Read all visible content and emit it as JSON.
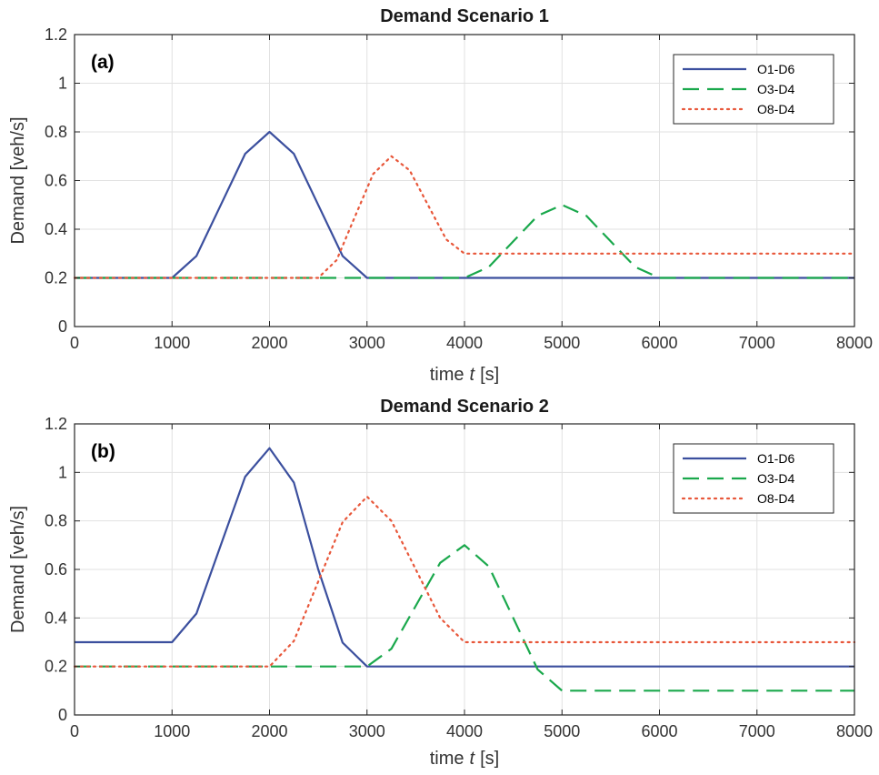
{
  "chart_data": [
    {
      "type": "line",
      "title": "Demand Scenario 1",
      "panel_label": "(a)",
      "xlabel_prefix": "time",
      "xlabel_var": "t",
      "xlabel_unit": "[s]",
      "ylabel": "Demand [veh/s]",
      "xlim": [
        0,
        8000
      ],
      "ylim": [
        0,
        1.2
      ],
      "xticks": [
        0,
        1000,
        2000,
        3000,
        4000,
        5000,
        6000,
        7000,
        8000
      ],
      "yticks": [
        0,
        0.2,
        0.4,
        0.6,
        0.8,
        1,
        1.2
      ],
      "xtick_labels": [
        "0",
        "1000",
        "2000",
        "3000",
        "4000",
        "5000",
        "6000",
        "7000",
        "8000"
      ],
      "ytick_labels": [
        "0",
        "0.2",
        "0.4",
        "0.6",
        "0.8",
        "1",
        "1.2"
      ],
      "grid": true,
      "legend_position": "top-right",
      "series": [
        {
          "name": "O1-D6",
          "color": "#3b4f9e",
          "style": "solid",
          "x": [
            0,
            1000,
            1250,
            1500,
            1750,
            2000,
            2250,
            2500,
            2750,
            3000,
            8000
          ],
          "y": [
            0.2,
            0.2,
            0.29,
            0.5,
            0.71,
            0.8,
            0.71,
            0.5,
            0.29,
            0.2,
            0.2
          ]
        },
        {
          "name": "O3-D4",
          "color": "#1aa84c",
          "style": "dashed",
          "x": [
            0,
            4000,
            4250,
            4500,
            4750,
            5000,
            5250,
            5500,
            5750,
            6000,
            8000
          ],
          "y": [
            0.2,
            0.2,
            0.245,
            0.35,
            0.455,
            0.5,
            0.455,
            0.35,
            0.245,
            0.2,
            0.2
          ]
        },
        {
          "name": "O8-D4",
          "color": "#e8573a",
          "style": "dotted",
          "x": [
            0,
            2500,
            2688,
            2875,
            3063,
            3250,
            3438,
            3625,
            3813,
            4000,
            8000
          ],
          "y": [
            0.2,
            0.2,
            0.273,
            0.45,
            0.627,
            0.7,
            0.642,
            0.5,
            0.358,
            0.3,
            0.3
          ]
        }
      ]
    },
    {
      "type": "line",
      "title": "Demand Scenario 2",
      "panel_label": "(b)",
      "xlabel_prefix": "time",
      "xlabel_var": "t",
      "xlabel_unit": "[s]",
      "ylabel": "Demand [veh/s]",
      "xlim": [
        0,
        8000
      ],
      "ylim": [
        0,
        1.2
      ],
      "xticks": [
        0,
        1000,
        2000,
        3000,
        4000,
        5000,
        6000,
        7000,
        8000
      ],
      "yticks": [
        0,
        0.2,
        0.4,
        0.6,
        0.8,
        1,
        1.2
      ],
      "xtick_labels": [
        "0",
        "1000",
        "2000",
        "3000",
        "4000",
        "5000",
        "6000",
        "7000",
        "8000"
      ],
      "ytick_labels": [
        "0",
        "0.2",
        "0.4",
        "0.6",
        "0.8",
        "1",
        "1.2"
      ],
      "grid": true,
      "legend_position": "top-right",
      "series": [
        {
          "name": "O1-D6",
          "color": "#3b4f9e",
          "style": "solid",
          "x": [
            0,
            1000,
            1250,
            1500,
            1750,
            2000,
            2250,
            2500,
            2750,
            3000,
            8000
          ],
          "y": [
            0.3,
            0.3,
            0.418,
            0.7,
            0.982,
            1.1,
            0.958,
            0.6,
            0.298,
            0.2,
            0.2
          ]
        },
        {
          "name": "O3-D4",
          "color": "#1aa84c",
          "style": "dashed",
          "x": [
            0,
            3000,
            3250,
            3500,
            3750,
            4000,
            4250,
            4500,
            4750,
            5000,
            8000
          ],
          "y": [
            0.2,
            0.2,
            0.273,
            0.45,
            0.627,
            0.7,
            0.612,
            0.4,
            0.188,
            0.1,
            0.1
          ]
        },
        {
          "name": "O8-D4",
          "color": "#e8573a",
          "style": "dotted",
          "x": [
            0,
            2000,
            2250,
            2500,
            2750,
            3000,
            3250,
            3500,
            3750,
            4000,
            8000
          ],
          "y": [
            0.2,
            0.2,
            0.305,
            0.55,
            0.795,
            0.9,
            0.8,
            0.6,
            0.4,
            0.3,
            0.3
          ]
        }
      ]
    }
  ]
}
